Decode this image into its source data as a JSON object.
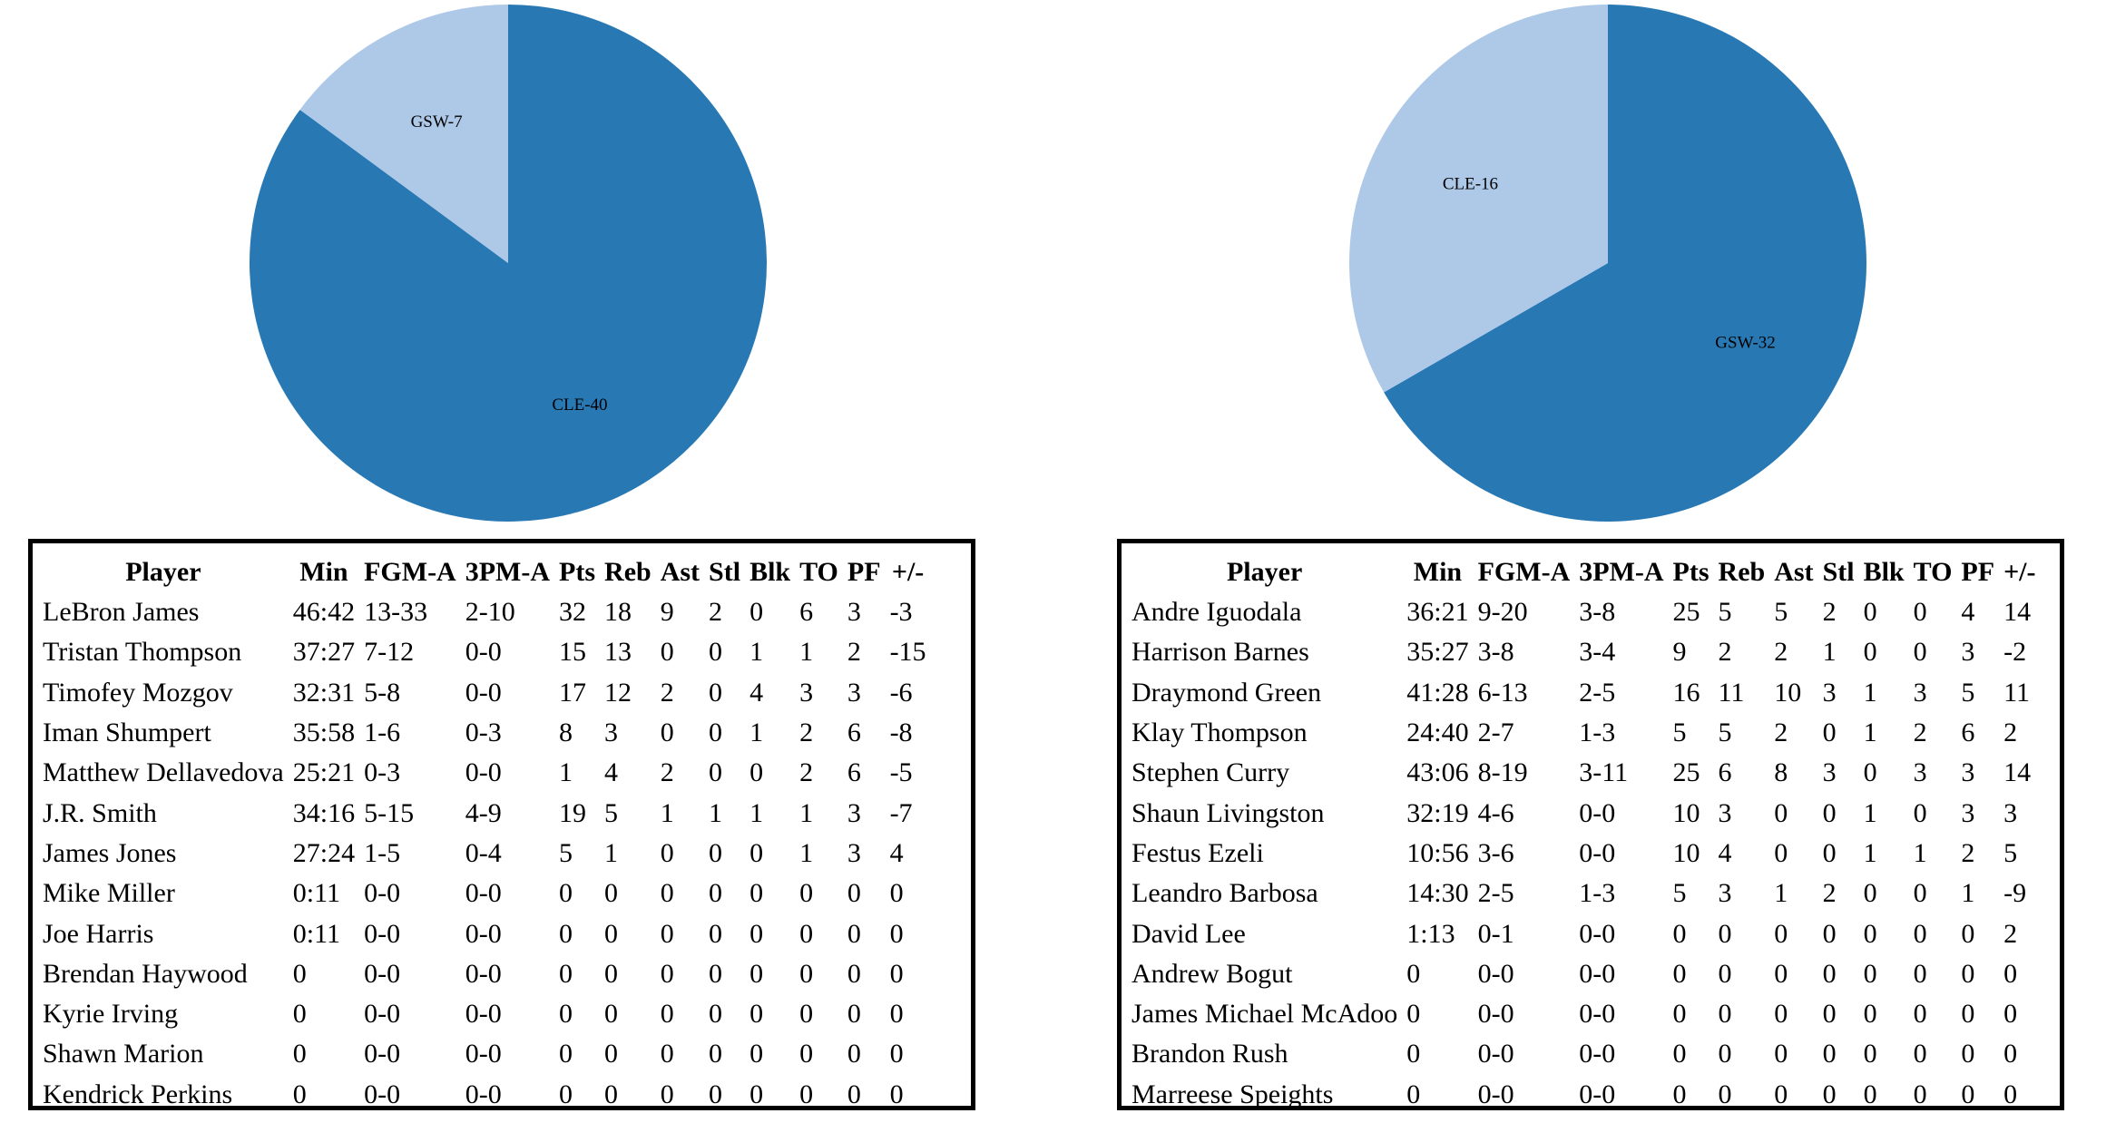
{
  "colors": {
    "dark_slice": "#2878b4",
    "light_slice": "#aec8e8"
  },
  "chart_data": [
    {
      "type": "pie",
      "slices": [
        {
          "label": "CLE-40",
          "team": "CLE",
          "value": 40,
          "color": "#2878b4"
        },
        {
          "label": "GSW-7",
          "team": "GSW",
          "value": 7,
          "color": "#aec8e8"
        }
      ]
    },
    {
      "type": "pie",
      "slices": [
        {
          "label": "GSW-32",
          "team": "GSW",
          "value": 32,
          "color": "#2878b4"
        },
        {
          "label": "CLE-16",
          "team": "CLE",
          "value": 16,
          "color": "#aec8e8"
        }
      ]
    },
    {
      "type": "table",
      "columns": [
        "Player",
        "Min",
        "FGM-A",
        "3PM-A",
        "Pts",
        "Reb",
        "Ast",
        "Stl",
        "Blk",
        "TO",
        "PF",
        "+/-"
      ],
      "rows": [
        [
          "LeBron James",
          "46:42",
          "13-33",
          "2-10",
          "32",
          "18",
          "9",
          "2",
          "0",
          "6",
          "3",
          "-3"
        ],
        [
          "Tristan Thompson",
          "37:27",
          "7-12",
          "0-0",
          "15",
          "13",
          "0",
          "0",
          "1",
          "1",
          "2",
          "-15"
        ],
        [
          "Timofey Mozgov",
          "32:31",
          "5-8",
          "0-0",
          "17",
          "12",
          "2",
          "0",
          "4",
          "3",
          "3",
          "-6"
        ],
        [
          "Iman Shumpert",
          "35:58",
          "1-6",
          "0-3",
          "8",
          "3",
          "0",
          "0",
          "1",
          "2",
          "6",
          "-8"
        ],
        [
          "Matthew Dellavedova",
          "25:21",
          "0-3",
          "0-0",
          "1",
          "4",
          "2",
          "0",
          "0",
          "2",
          "6",
          "-5"
        ],
        [
          "J.R. Smith",
          "34:16",
          "5-15",
          "4-9",
          "19",
          "5",
          "1",
          "1",
          "1",
          "1",
          "3",
          "-7"
        ],
        [
          "James Jones",
          "27:24",
          "1-5",
          "0-4",
          "5",
          "1",
          "0",
          "0",
          "0",
          "1",
          "3",
          "4"
        ],
        [
          "Mike Miller",
          "0:11",
          "0-0",
          "0-0",
          "0",
          "0",
          "0",
          "0",
          "0",
          "0",
          "0",
          "0"
        ],
        [
          "Joe Harris",
          "0:11",
          "0-0",
          "0-0",
          "0",
          "0",
          "0",
          "0",
          "0",
          "0",
          "0",
          "0"
        ],
        [
          "Brendan Haywood",
          "0",
          "0-0",
          "0-0",
          "0",
          "0",
          "0",
          "0",
          "0",
          "0",
          "0",
          "0"
        ],
        [
          "Kyrie Irving",
          "0",
          "0-0",
          "0-0",
          "0",
          "0",
          "0",
          "0",
          "0",
          "0",
          "0",
          "0"
        ],
        [
          "Shawn Marion",
          "0",
          "0-0",
          "0-0",
          "0",
          "0",
          "0",
          "0",
          "0",
          "0",
          "0",
          "0"
        ],
        [
          "Kendrick Perkins",
          "0",
          "0-0",
          "0-0",
          "0",
          "0",
          "0",
          "0",
          "0",
          "0",
          "0",
          "0"
        ]
      ]
    },
    {
      "type": "table",
      "columns": [
        "Player",
        "Min",
        "FGM-A",
        "3PM-A",
        "Pts",
        "Reb",
        "Ast",
        "Stl",
        "Blk",
        "TO",
        "PF",
        "+/-"
      ],
      "rows": [
        [
          "Andre Iguodala",
          "36:21",
          "9-20",
          "3-8",
          "25",
          "5",
          "5",
          "2",
          "0",
          "0",
          "4",
          "14"
        ],
        [
          "Harrison Barnes",
          "35:27",
          "3-8",
          "3-4",
          "9",
          "2",
          "2",
          "1",
          "0",
          "0",
          "3",
          "-2"
        ],
        [
          "Draymond Green",
          "41:28",
          "6-13",
          "2-5",
          "16",
          "11",
          "10",
          "3",
          "1",
          "3",
          "5",
          "11"
        ],
        [
          "Klay Thompson",
          "24:40",
          "2-7",
          "1-3",
          "5",
          "5",
          "2",
          "0",
          "1",
          "2",
          "6",
          "2"
        ],
        [
          "Stephen Curry",
          "43:06",
          "8-19",
          "3-11",
          "25",
          "6",
          "8",
          "3",
          "0",
          "3",
          "3",
          "14"
        ],
        [
          "Shaun Livingston",
          "32:19",
          "4-6",
          "0-0",
          "10",
          "3",
          "0",
          "0",
          "1",
          "0",
          "3",
          "3"
        ],
        [
          "Festus Ezeli",
          "10:56",
          "3-6",
          "0-0",
          "10",
          "4",
          "0",
          "0",
          "1",
          "1",
          "2",
          "5"
        ],
        [
          "Leandro Barbosa",
          "14:30",
          "2-5",
          "1-3",
          "5",
          "3",
          "1",
          "2",
          "0",
          "0",
          "1",
          "-9"
        ],
        [
          "David Lee",
          "1:13",
          "0-1",
          "0-0",
          "0",
          "0",
          "0",
          "0",
          "0",
          "0",
          "0",
          "2"
        ],
        [
          "Andrew Bogut",
          "0",
          "0-0",
          "0-0",
          "0",
          "0",
          "0",
          "0",
          "0",
          "0",
          "0",
          "0"
        ],
        [
          "James Michael McAdoo",
          "0",
          "0-0",
          "0-0",
          "0",
          "0",
          "0",
          "0",
          "0",
          "0",
          "0",
          "0"
        ],
        [
          "Brandon Rush",
          "0",
          "0-0",
          "0-0",
          "0",
          "0",
          "0",
          "0",
          "0",
          "0",
          "0",
          "0"
        ],
        [
          "Marreese Speights",
          "0",
          "0-0",
          "0-0",
          "0",
          "0",
          "0",
          "0",
          "0",
          "0",
          "0",
          "0"
        ]
      ]
    }
  ]
}
